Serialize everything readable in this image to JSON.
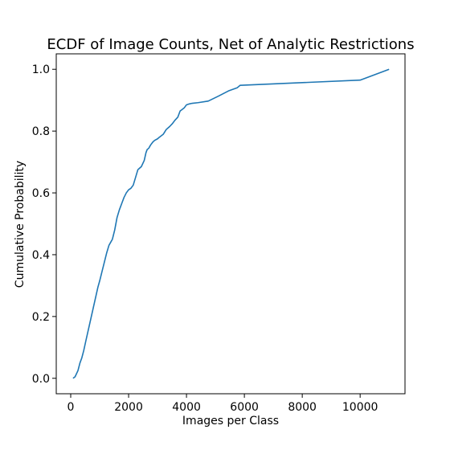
{
  "chart_data": {
    "type": "line",
    "title": "ECDF of Image Counts, Net of Analytic Restrictions",
    "xlabel": "Images per Class",
    "ylabel": "Cumulative Probability",
    "xlim": [
      -500,
      11550
    ],
    "ylim": [
      -0.05,
      1.05
    ],
    "xticks": [
      0,
      2000,
      4000,
      6000,
      8000,
      10000
    ],
    "xtick_labels": [
      "0",
      "2000",
      "4000",
      "6000",
      "8000",
      "10000"
    ],
    "yticks": [
      0.0,
      0.2,
      0.4,
      0.6,
      0.8,
      1.0
    ],
    "ytick_labels": [
      "0.0",
      "0.2",
      "0.4",
      "0.6",
      "0.8",
      "1.0"
    ],
    "grid": false,
    "legend": false,
    "series": [
      {
        "color": "#1f77b4",
        "x": [
          80,
          150,
          250,
          320,
          380,
          450,
          520,
          580,
          640,
          700,
          760,
          820,
          880,
          940,
          1000,
          1080,
          1160,
          1240,
          1320,
          1380,
          1440,
          1520,
          1600,
          1680,
          1760,
          1840,
          1920,
          2000,
          2080,
          2160,
          2240,
          2320,
          2380,
          2440,
          2540,
          2600,
          2640,
          2700,
          2760,
          2840,
          2900,
          3000,
          3060,
          3200,
          3300,
          3420,
          3520,
          3600,
          3700,
          3780,
          3850,
          3920,
          4000,
          4100,
          4200,
          4400,
          4750,
          5100,
          5450,
          5750,
          5850,
          10000,
          11000
        ],
        "y": [
          0.0,
          0.005,
          0.025,
          0.05,
          0.065,
          0.09,
          0.12,
          0.145,
          0.17,
          0.195,
          0.22,
          0.245,
          0.27,
          0.295,
          0.315,
          0.345,
          0.375,
          0.405,
          0.43,
          0.44,
          0.45,
          0.48,
          0.52,
          0.545,
          0.565,
          0.585,
          0.6,
          0.61,
          0.615,
          0.625,
          0.65,
          0.675,
          0.68,
          0.685,
          0.705,
          0.73,
          0.74,
          0.745,
          0.755,
          0.765,
          0.77,
          0.775,
          0.78,
          0.79,
          0.805,
          0.815,
          0.825,
          0.835,
          0.845,
          0.865,
          0.87,
          0.875,
          0.885,
          0.888,
          0.89,
          0.892,
          0.897,
          0.913,
          0.93,
          0.94,
          0.948,
          0.965,
          1.0
        ]
      }
    ]
  }
}
